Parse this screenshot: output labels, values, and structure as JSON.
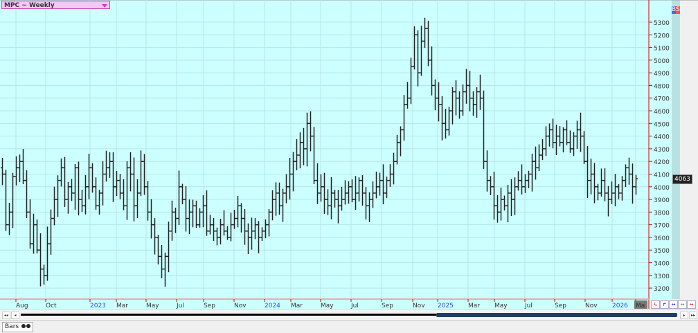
{
  "title": "MPC ~ Weekly",
  "badges": {
    "buy": "B",
    "sell": "S",
    "buy_color": "#4466ee",
    "sell_color": "#ee5555"
  },
  "last_price": "4063",
  "status_tab": "Bars",
  "colors": {
    "background": "#ccffff",
    "bars": "#222222",
    "axis": "#dd0000",
    "grid": "#b8e4e4"
  },
  "chart_data": {
    "type": "ohlc-bar",
    "title": "MPC ~ Weekly",
    "y_ticks": [
      3200,
      3300,
      3400,
      3500,
      3600,
      3700,
      3800,
      3900,
      4000,
      4100,
      4200,
      4300,
      4400,
      4500,
      4600,
      4700,
      4800,
      4900,
      5000,
      5100,
      5200,
      5300
    ],
    "ylim": [
      3100,
      5420
    ],
    "x_ticks": [
      {
        "label": "Aug",
        "year": false
      },
      {
        "label": "Oct",
        "year": false
      },
      {
        "label": "2023",
        "year": true
      },
      {
        "label": "Mar",
        "year": false
      },
      {
        "label": "May",
        "year": false
      },
      {
        "label": "Jul",
        "year": false
      },
      {
        "label": "Sep",
        "year": false
      },
      {
        "label": "Nov",
        "year": false
      },
      {
        "label": "2024",
        "year": true
      },
      {
        "label": "Mar",
        "year": false
      },
      {
        "label": "May",
        "year": false
      },
      {
        "label": "Jul",
        "year": false
      },
      {
        "label": "Sep",
        "year": false
      },
      {
        "label": "Nov",
        "year": false
      },
      {
        "label": "2025",
        "year": true
      },
      {
        "label": "Mar",
        "year": false
      },
      {
        "label": "May",
        "year": false
      },
      {
        "label": "Jul",
        "year": false
      },
      {
        "label": "Sep",
        "year": false
      },
      {
        "label": "Nov",
        "year": false
      },
      {
        "label": "2026",
        "year": true
      },
      {
        "label": "Ma",
        "year": false
      }
    ],
    "grid": true,
    "close": [
      4100,
      3700,
      3800,
      4080,
      4150,
      4200,
      4050,
      3800,
      3550,
      3700,
      3500,
      3350,
      3300,
      3550,
      3750,
      3900,
      4050,
      4150,
      3900,
      4000,
      3950,
      4150,
      3900,
      3850,
      4000,
      4150,
      4000,
      3850,
      3950,
      4100,
      4150,
      4200,
      4000,
      4050,
      3950,
      3850,
      4150,
      4100,
      3850,
      3950,
      4200,
      4000,
      3800,
      3700,
      3600,
      3450,
      3350,
      3450,
      3650,
      3800,
      3750,
      4000,
      3900,
      3750,
      3800,
      3850,
      3700,
      3800,
      3850,
      3650,
      3700,
      3650,
      3600,
      3700,
      3650,
      3600,
      3700,
      3750,
      3850,
      3750,
      3650,
      3600,
      3650,
      3700,
      3600,
      3650,
      3700,
      3800,
      3900,
      3950,
      3850,
      3950,
      4000,
      4100,
      4200,
      4250,
      4350,
      4300,
      4500,
      4400,
      4050,
      3950,
      4000,
      3900,
      3850,
      3950,
      3900,
      3850,
      3900,
      3950,
      4000,
      3900,
      3950,
      4050,
      3950,
      3850,
      3900,
      3950,
      4000,
      4050,
      3950,
      4050,
      4100,
      4200,
      4350,
      4450,
      4650,
      4700,
      4950,
      5200,
      4900,
      5150,
      5250,
      5000,
      4800,
      4700,
      4650,
      4500,
      4450,
      4600,
      4750,
      4700,
      4600,
      4750,
      4800,
      4700,
      4650,
      4750,
      4700,
      4200,
      4050,
      4000,
      3850,
      3800,
      3900,
      3850,
      3950,
      3900,
      4000,
      4050,
      4000,
      4050,
      4100,
      4200,
      4150,
      4250,
      4300,
      4400,
      4450,
      4350,
      4400,
      4350,
      4450,
      4350,
      4300,
      4400,
      4450,
      4400,
      4200,
      4050,
      4100,
      4000,
      3950,
      4050,
      3950,
      3900,
      3950,
      4000,
      3950,
      4050,
      4150,
      4100,
      4000,
      4063
    ]
  }
}
